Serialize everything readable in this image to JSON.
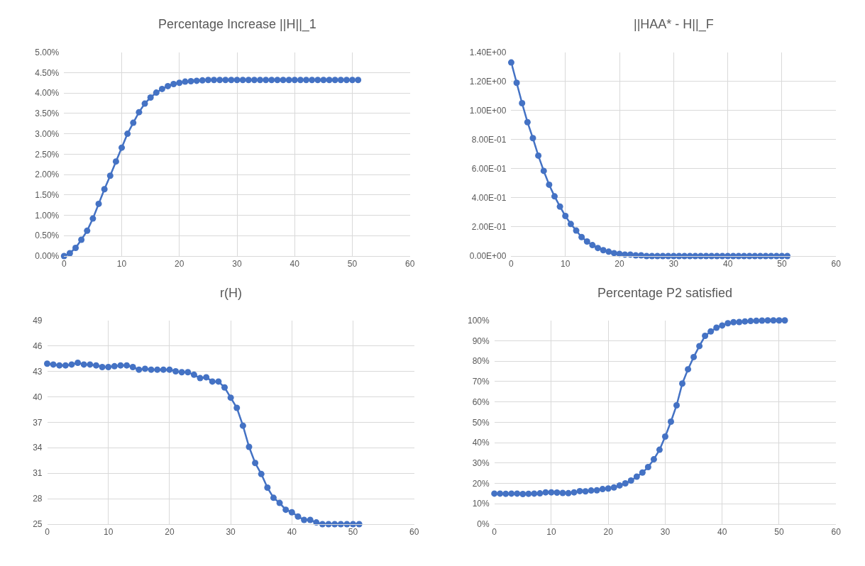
{
  "chart_data": [
    {
      "type": "line",
      "title": "Percentage Increase ||H||_1",
      "x": [
        0,
        1,
        2,
        3,
        4,
        5,
        6,
        7,
        8,
        9,
        10,
        11,
        12,
        13,
        14,
        15,
        16,
        17,
        18,
        19,
        20,
        21,
        22,
        23,
        24,
        25,
        26,
        27,
        28,
        29,
        30,
        31,
        32,
        33,
        34,
        35,
        36,
        37,
        38,
        39,
        40,
        41,
        42,
        43,
        44,
        45,
        46,
        47,
        48,
        49,
        50,
        51
      ],
      "series": [
        {
          "color": "#4472c4",
          "values": [
            0,
            0.07,
            0.2,
            0.4,
            0.62,
            0.92,
            1.28,
            1.64,
            1.97,
            2.32,
            2.66,
            3.0,
            3.27,
            3.53,
            3.74,
            3.89,
            4.01,
            4.1,
            4.17,
            4.22,
            4.25,
            4.28,
            4.29,
            4.3,
            4.31,
            4.32,
            4.32,
            4.32,
            4.32,
            4.32,
            4.32,
            4.32,
            4.32,
            4.32,
            4.32,
            4.32,
            4.32,
            4.32,
            4.32,
            4.32,
            4.32,
            4.32,
            4.32,
            4.32,
            4.32,
            4.32,
            4.32,
            4.32,
            4.32,
            4.32,
            4.32,
            4.32
          ]
        }
      ],
      "xlim": [
        0,
        60
      ],
      "xticks": [
        0,
        10,
        20,
        30,
        40,
        50,
        60
      ],
      "ylim": [
        0,
        5
      ],
      "yticks": [
        {
          "value": 0,
          "label": "0.00%"
        },
        {
          "value": 0.5,
          "label": "0.50%"
        },
        {
          "value": 1,
          "label": "1.00%"
        },
        {
          "value": 1.5,
          "label": "1.50%"
        },
        {
          "value": 2,
          "label": "2.00%"
        },
        {
          "value": 2.5,
          "label": "2.50%"
        },
        {
          "value": 3,
          "label": "3.00%"
        },
        {
          "value": 3.5,
          "label": "3.50%"
        },
        {
          "value": 4,
          "label": "4.00%"
        },
        {
          "value": 4.5,
          "label": "4.50%"
        },
        {
          "value": 5,
          "label": "5.00%"
        }
      ],
      "grid": true,
      "marker": "circle",
      "line_style": "solid"
    },
    {
      "type": "line",
      "title": "||HAA* - H||_F",
      "x": [
        0,
        1,
        2,
        3,
        4,
        5,
        6,
        7,
        8,
        9,
        10,
        11,
        12,
        13,
        14,
        15,
        16,
        17,
        18,
        19,
        20,
        21,
        22,
        23,
        24,
        25,
        26,
        27,
        28,
        29,
        30,
        31,
        32,
        33,
        34,
        35,
        36,
        37,
        38,
        39,
        40,
        41,
        42,
        43,
        44,
        45,
        46,
        47,
        48,
        49,
        50,
        51
      ],
      "series": [
        {
          "color": "#4472c4",
          "values": [
            1.33,
            1.19,
            1.05,
            0.92,
            0.81,
            0.69,
            0.585,
            0.49,
            0.41,
            0.34,
            0.275,
            0.22,
            0.175,
            0.13,
            0.1,
            0.075,
            0.055,
            0.04,
            0.03,
            0.02,
            0.015,
            0.01,
            0.01,
            0.005,
            0.005,
            0,
            0,
            0,
            0,
            0,
            0,
            0,
            0,
            0,
            0,
            0,
            0,
            0,
            0,
            0,
            0,
            0,
            0,
            0,
            0,
            0,
            0,
            0,
            0,
            0,
            0,
            0
          ]
        }
      ],
      "xlim": [
        0,
        60
      ],
      "xticks": [
        0,
        10,
        20,
        30,
        40,
        50,
        60
      ],
      "ylim": [
        0,
        1.4
      ],
      "yticks": [
        {
          "value": 0,
          "label": "0.00E+00"
        },
        {
          "value": 0.2,
          "label": "2.00E-01"
        },
        {
          "value": 0.4,
          "label": "4.00E-01"
        },
        {
          "value": 0.6,
          "label": "6.00E-01"
        },
        {
          "value": 0.8,
          "label": "8.00E-01"
        },
        {
          "value": 1.0,
          "label": "1.00E+00"
        },
        {
          "value": 1.2,
          "label": "1.20E+00"
        },
        {
          "value": 1.4,
          "label": "1.40E+00"
        }
      ],
      "grid": true,
      "marker": "circle",
      "line_style": "solid"
    },
    {
      "type": "line",
      "title": "r(H)",
      "x": [
        0,
        1,
        2,
        3,
        4,
        5,
        6,
        7,
        8,
        9,
        10,
        11,
        12,
        13,
        14,
        15,
        16,
        17,
        18,
        19,
        20,
        21,
        22,
        23,
        24,
        25,
        26,
        27,
        28,
        29,
        30,
        31,
        32,
        33,
        34,
        35,
        36,
        37,
        38,
        39,
        40,
        41,
        42,
        43,
        44,
        45,
        46,
        47,
        48,
        49,
        50,
        51
      ],
      "series": [
        {
          "color": "#4472c4",
          "values": [
            43.9,
            43.8,
            43.7,
            43.7,
            43.8,
            44.0,
            43.8,
            43.8,
            43.7,
            43.5,
            43.5,
            43.6,
            43.7,
            43.7,
            43.5,
            43.2,
            43.3,
            43.2,
            43.2,
            43.2,
            43.2,
            43.0,
            42.9,
            42.9,
            42.6,
            42.2,
            42.3,
            41.8,
            41.8,
            41.1,
            39.9,
            38.7,
            36.6,
            34.1,
            32.2,
            30.9,
            29.3,
            28.1,
            27.5,
            26.7,
            26.4,
            25.9,
            25.5,
            25.5,
            25.2,
            25.0,
            25.0,
            25.0,
            25.0,
            25.0,
            25.0,
            25.0
          ]
        }
      ],
      "xlim": [
        0,
        60
      ],
      "xticks": [
        0,
        10,
        20,
        30,
        40,
        50,
        60
      ],
      "ylim": [
        25,
        49
      ],
      "yticks": [
        25,
        28,
        31,
        34,
        37,
        40,
        43,
        46,
        49
      ],
      "grid": true,
      "marker": "circle",
      "line_style": "solid"
    },
    {
      "type": "line",
      "title": "Percentage P2 satisfied",
      "x": [
        0,
        1,
        2,
        3,
        4,
        5,
        6,
        7,
        8,
        9,
        10,
        11,
        12,
        13,
        14,
        15,
        16,
        17,
        18,
        19,
        20,
        21,
        22,
        23,
        24,
        25,
        26,
        27,
        28,
        29,
        30,
        31,
        32,
        33,
        34,
        35,
        36,
        37,
        38,
        39,
        40,
        41,
        42,
        43,
        44,
        45,
        46,
        47,
        48,
        49,
        50,
        51
      ],
      "series": [
        {
          "color": "#4472c4",
          "values": [
            15,
            15,
            14.9,
            15,
            15,
            14.8,
            14.9,
            15,
            15.1,
            15.6,
            15.6,
            15.5,
            15.3,
            15.2,
            15.6,
            16.2,
            16.1,
            16.5,
            16.6,
            17.2,
            17.5,
            18,
            19,
            20,
            21.4,
            23.3,
            25.3,
            28,
            31.8,
            36.5,
            43,
            50.3,
            58.3,
            69,
            76,
            82,
            87.4,
            92.4,
            94.6,
            96.4,
            97.5,
            98.6,
            99.1,
            99.2,
            99.5,
            99.7,
            99.8,
            99.9,
            100,
            100,
            100,
            100
          ]
        }
      ],
      "xlim": [
        0,
        60
      ],
      "xticks": [
        0,
        10,
        20,
        30,
        40,
        50,
        60
      ],
      "ylim": [
        0,
        100
      ],
      "yticks": [
        {
          "value": 0,
          "label": "0%"
        },
        {
          "value": 10,
          "label": "10%"
        },
        {
          "value": 20,
          "label": "20%"
        },
        {
          "value": 30,
          "label": "30%"
        },
        {
          "value": 40,
          "label": "40%"
        },
        {
          "value": 50,
          "label": "50%"
        },
        {
          "value": 60,
          "label": "60%"
        },
        {
          "value": 70,
          "label": "70%"
        },
        {
          "value": 80,
          "label": "80%"
        },
        {
          "value": 90,
          "label": "90%"
        },
        {
          "value": 100,
          "label": "100%"
        }
      ],
      "grid": true,
      "marker": "circle",
      "line_style": "solid"
    }
  ]
}
